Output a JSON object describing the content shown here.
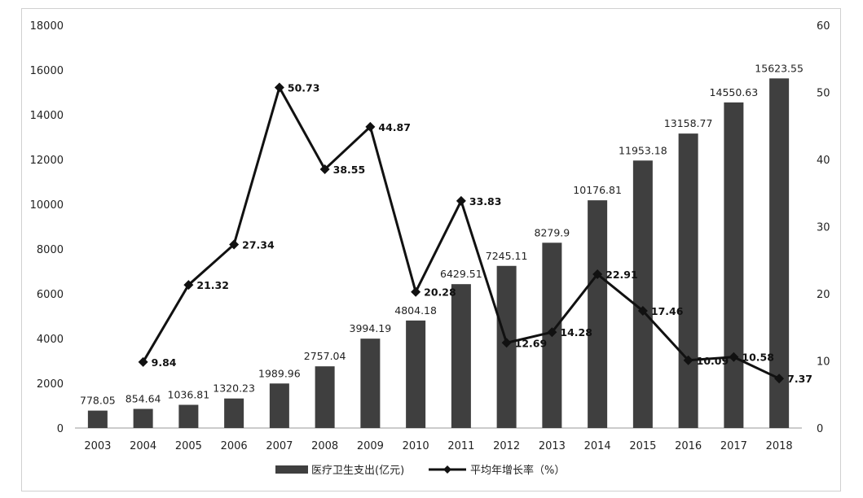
{
  "chart_data": {
    "type": "bar",
    "categories": [
      "2003",
      "2004",
      "2005",
      "2006",
      "2007",
      "2008",
      "2009",
      "2010",
      "2011",
      "2012",
      "2013",
      "2014",
      "2015",
      "2016",
      "2017",
      "2018"
    ],
    "series": [
      {
        "name": "医疗卫生支出(亿元)",
        "type": "bar",
        "axis": "left",
        "color": "#3f3f3f",
        "values": [
          778.05,
          854.64,
          1036.81,
          1320.23,
          1989.96,
          2757.04,
          3994.19,
          4804.18,
          6429.51,
          7245.11,
          8279.9,
          10176.81,
          11953.18,
          13158.77,
          14550.63,
          15623.55
        ],
        "labels": [
          "778.05",
          "854.64",
          "1036.81",
          "1320.23",
          "1989.96",
          "2757.04",
          "3994.19",
          "4804.18",
          "6429.51",
          "7245.11",
          "8279.9",
          "10176.81",
          "11953.18",
          "13158.77",
          "14550.63",
          "15623.55"
        ]
      },
      {
        "name": "平均年增长率（%）",
        "type": "line",
        "axis": "right",
        "color": "#111111",
        "values": [
          null,
          9.84,
          21.32,
          27.34,
          50.73,
          38.55,
          44.87,
          20.28,
          33.83,
          12.69,
          14.28,
          22.91,
          17.46,
          10.09,
          10.58,
          7.37
        ],
        "labels": [
          "",
          "9.84",
          "21.32",
          "27.34",
          "50.73",
          "38.55",
          "44.87",
          "20.28",
          "33.83",
          "12.69",
          "14.28",
          "22.91",
          "17.46",
          "10.09",
          "10.58",
          "7.37"
        ]
      }
    ],
    "y_left": {
      "min": 0,
      "max": 18000,
      "ticks": [
        "0",
        "2000",
        "4000",
        "6000",
        "8000",
        "10000",
        "12000",
        "14000",
        "16000",
        "18000"
      ]
    },
    "y_right": {
      "min": 0,
      "max": 60,
      "ticks": [
        "0",
        "10",
        "20",
        "30",
        "40",
        "50",
        "60"
      ]
    },
    "legend": {
      "position": "bottom"
    },
    "grid": false
  }
}
